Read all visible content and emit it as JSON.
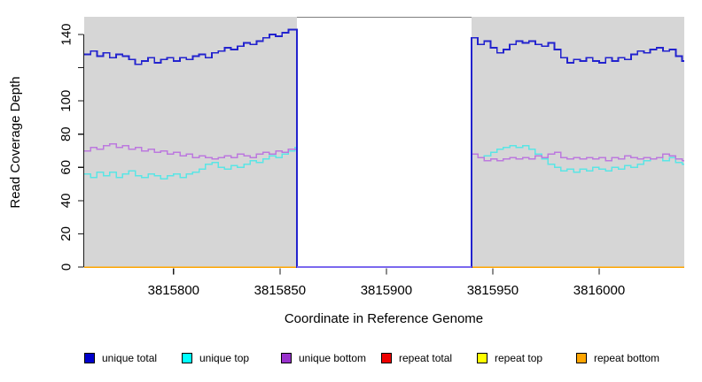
{
  "chart_data": {
    "type": "line",
    "subtype": "step",
    "title": "",
    "xlabel": "Coordinate in Reference Genome",
    "ylabel": "Read Coverage Depth",
    "xlim": [
      3815758,
      3816040
    ],
    "ylim": [
      0,
      150
    ],
    "x_ticks": [
      3815800,
      3815850,
      3815900,
      3815950,
      3816000
    ],
    "y_ticks": [
      0,
      20,
      40,
      60,
      80,
      100,
      120,
      140
    ],
    "y_tick_labels": [
      "0",
      "20",
      "40",
      "60",
      "80",
      "100",
      "",
      "140"
    ],
    "grid": false,
    "legend_position": "bottom",
    "covered_color": "#D6D6D6",
    "gap_border_color": "#7F7F7F",
    "axis_color": "#1A1A1A",
    "covered_regions": [
      {
        "x0": 3815758,
        "x1": 3815858
      },
      {
        "x0": 3815940,
        "x1": 3816040
      }
    ],
    "gap_region": {
      "x0": 3815858,
      "x1": 3815940,
      "zero_line_color": "#7B68EE"
    },
    "series": [
      {
        "name": "unique total",
        "color": "#2323CE",
        "swatch": "#0000CC",
        "joins_gap_at_zero": true,
        "segments": [
          {
            "x0": 3815758,
            "dx": 3,
            "x_end": 3815858,
            "values": [
              128,
              130,
              127,
              129,
              126,
              128,
              127,
              125,
              122,
              124,
              126,
              123,
              125,
              126,
              124,
              126,
              125,
              127,
              128,
              126,
              129,
              130,
              132,
              131,
              133,
              135,
              134,
              136,
              138,
              140,
              139,
              141,
              143,
              143
            ]
          },
          {
            "x0": 3815940,
            "dx": 3,
            "x_end": 3816040,
            "values": [
              138,
              134,
              136,
              132,
              129,
              131,
              134,
              136,
              135,
              136,
              134,
              133,
              135,
              131,
              126,
              123,
              125,
              124,
              126,
              124,
              123,
              126,
              124,
              126,
              125,
              128,
              130,
              129,
              131,
              132,
              130,
              131,
              127,
              124
            ]
          }
        ]
      },
      {
        "name": "unique top",
        "color": "#5BE5E5",
        "swatch": "#00FFFF",
        "joins_gap_at_zero": true,
        "segments": [
          {
            "x0": 3815758,
            "dx": 3,
            "x_end": 3815858,
            "values": [
              56,
              54,
              57,
              55,
              57,
              54,
              56,
              58,
              55,
              54,
              56,
              55,
              53,
              55,
              56,
              54,
              56,
              57,
              59,
              62,
              63,
              60,
              59,
              61,
              60,
              62,
              64,
              63,
              65,
              67,
              66,
              68,
              70,
              72
            ]
          },
          {
            "x0": 3815940,
            "dx": 3,
            "x_end": 3816040,
            "values": [
              68,
              66,
              67,
              69,
              71,
              72,
              73,
              72,
              73,
              71,
              68,
              65,
              62,
              60,
              58,
              59,
              57,
              59,
              58,
              60,
              59,
              58,
              60,
              59,
              61,
              60,
              62,
              64,
              65,
              66,
              64,
              66,
              63,
              62
            ]
          }
        ]
      },
      {
        "name": "unique bottom",
        "color": "#BC79DE",
        "swatch": "#9932CC",
        "joins_gap_at_zero": true,
        "segments": [
          {
            "x0": 3815758,
            "dx": 3,
            "x_end": 3815858,
            "values": [
              70,
              72,
              71,
              73,
              74,
              72,
              73,
              71,
              72,
              70,
              71,
              69,
              70,
              68,
              69,
              67,
              68,
              66,
              67,
              66,
              65,
              66,
              67,
              66,
              68,
              67,
              66,
              68,
              69,
              68,
              70,
              69,
              71,
              71
            ]
          },
          {
            "x0": 3815940,
            "dx": 3,
            "x_end": 3816040,
            "values": [
              68,
              66,
              64,
              65,
              64,
              65,
              66,
              65,
              66,
              65,
              67,
              66,
              68,
              69,
              66,
              65,
              66,
              65,
              66,
              65,
              66,
              64,
              66,
              65,
              67,
              66,
              65,
              66,
              65,
              66,
              68,
              67,
              65,
              64
            ]
          }
        ]
      },
      {
        "name": "repeat total",
        "color": "#E00000",
        "swatch": "#EE0000",
        "joins_gap_at_zero": false,
        "segments": [
          {
            "x0": 3815758,
            "dx": 100,
            "x_end": 3815858,
            "values": [
              0,
              0
            ]
          },
          {
            "x0": 3815940,
            "dx": 100,
            "x_end": 3816040,
            "values": [
              0,
              0
            ]
          }
        ]
      },
      {
        "name": "repeat top",
        "color": "#FFFF00",
        "swatch": "#FFFF00",
        "joins_gap_at_zero": false,
        "segments": [
          {
            "x0": 3815758,
            "dx": 100,
            "x_end": 3815858,
            "values": [
              0,
              0
            ]
          },
          {
            "x0": 3815940,
            "dx": 100,
            "x_end": 3816040,
            "values": [
              0,
              0
            ]
          }
        ]
      },
      {
        "name": "repeat bottom",
        "color": "#FFA500",
        "swatch": "#FFA500",
        "joins_gap_at_zero": false,
        "segments": [
          {
            "x0": 3815758,
            "dx": 100,
            "x_end": 3815858,
            "values": [
              0,
              0
            ]
          },
          {
            "x0": 3815940,
            "dx": 100,
            "x_end": 3816040,
            "values": [
              0,
              0
            ]
          }
        ]
      }
    ]
  }
}
